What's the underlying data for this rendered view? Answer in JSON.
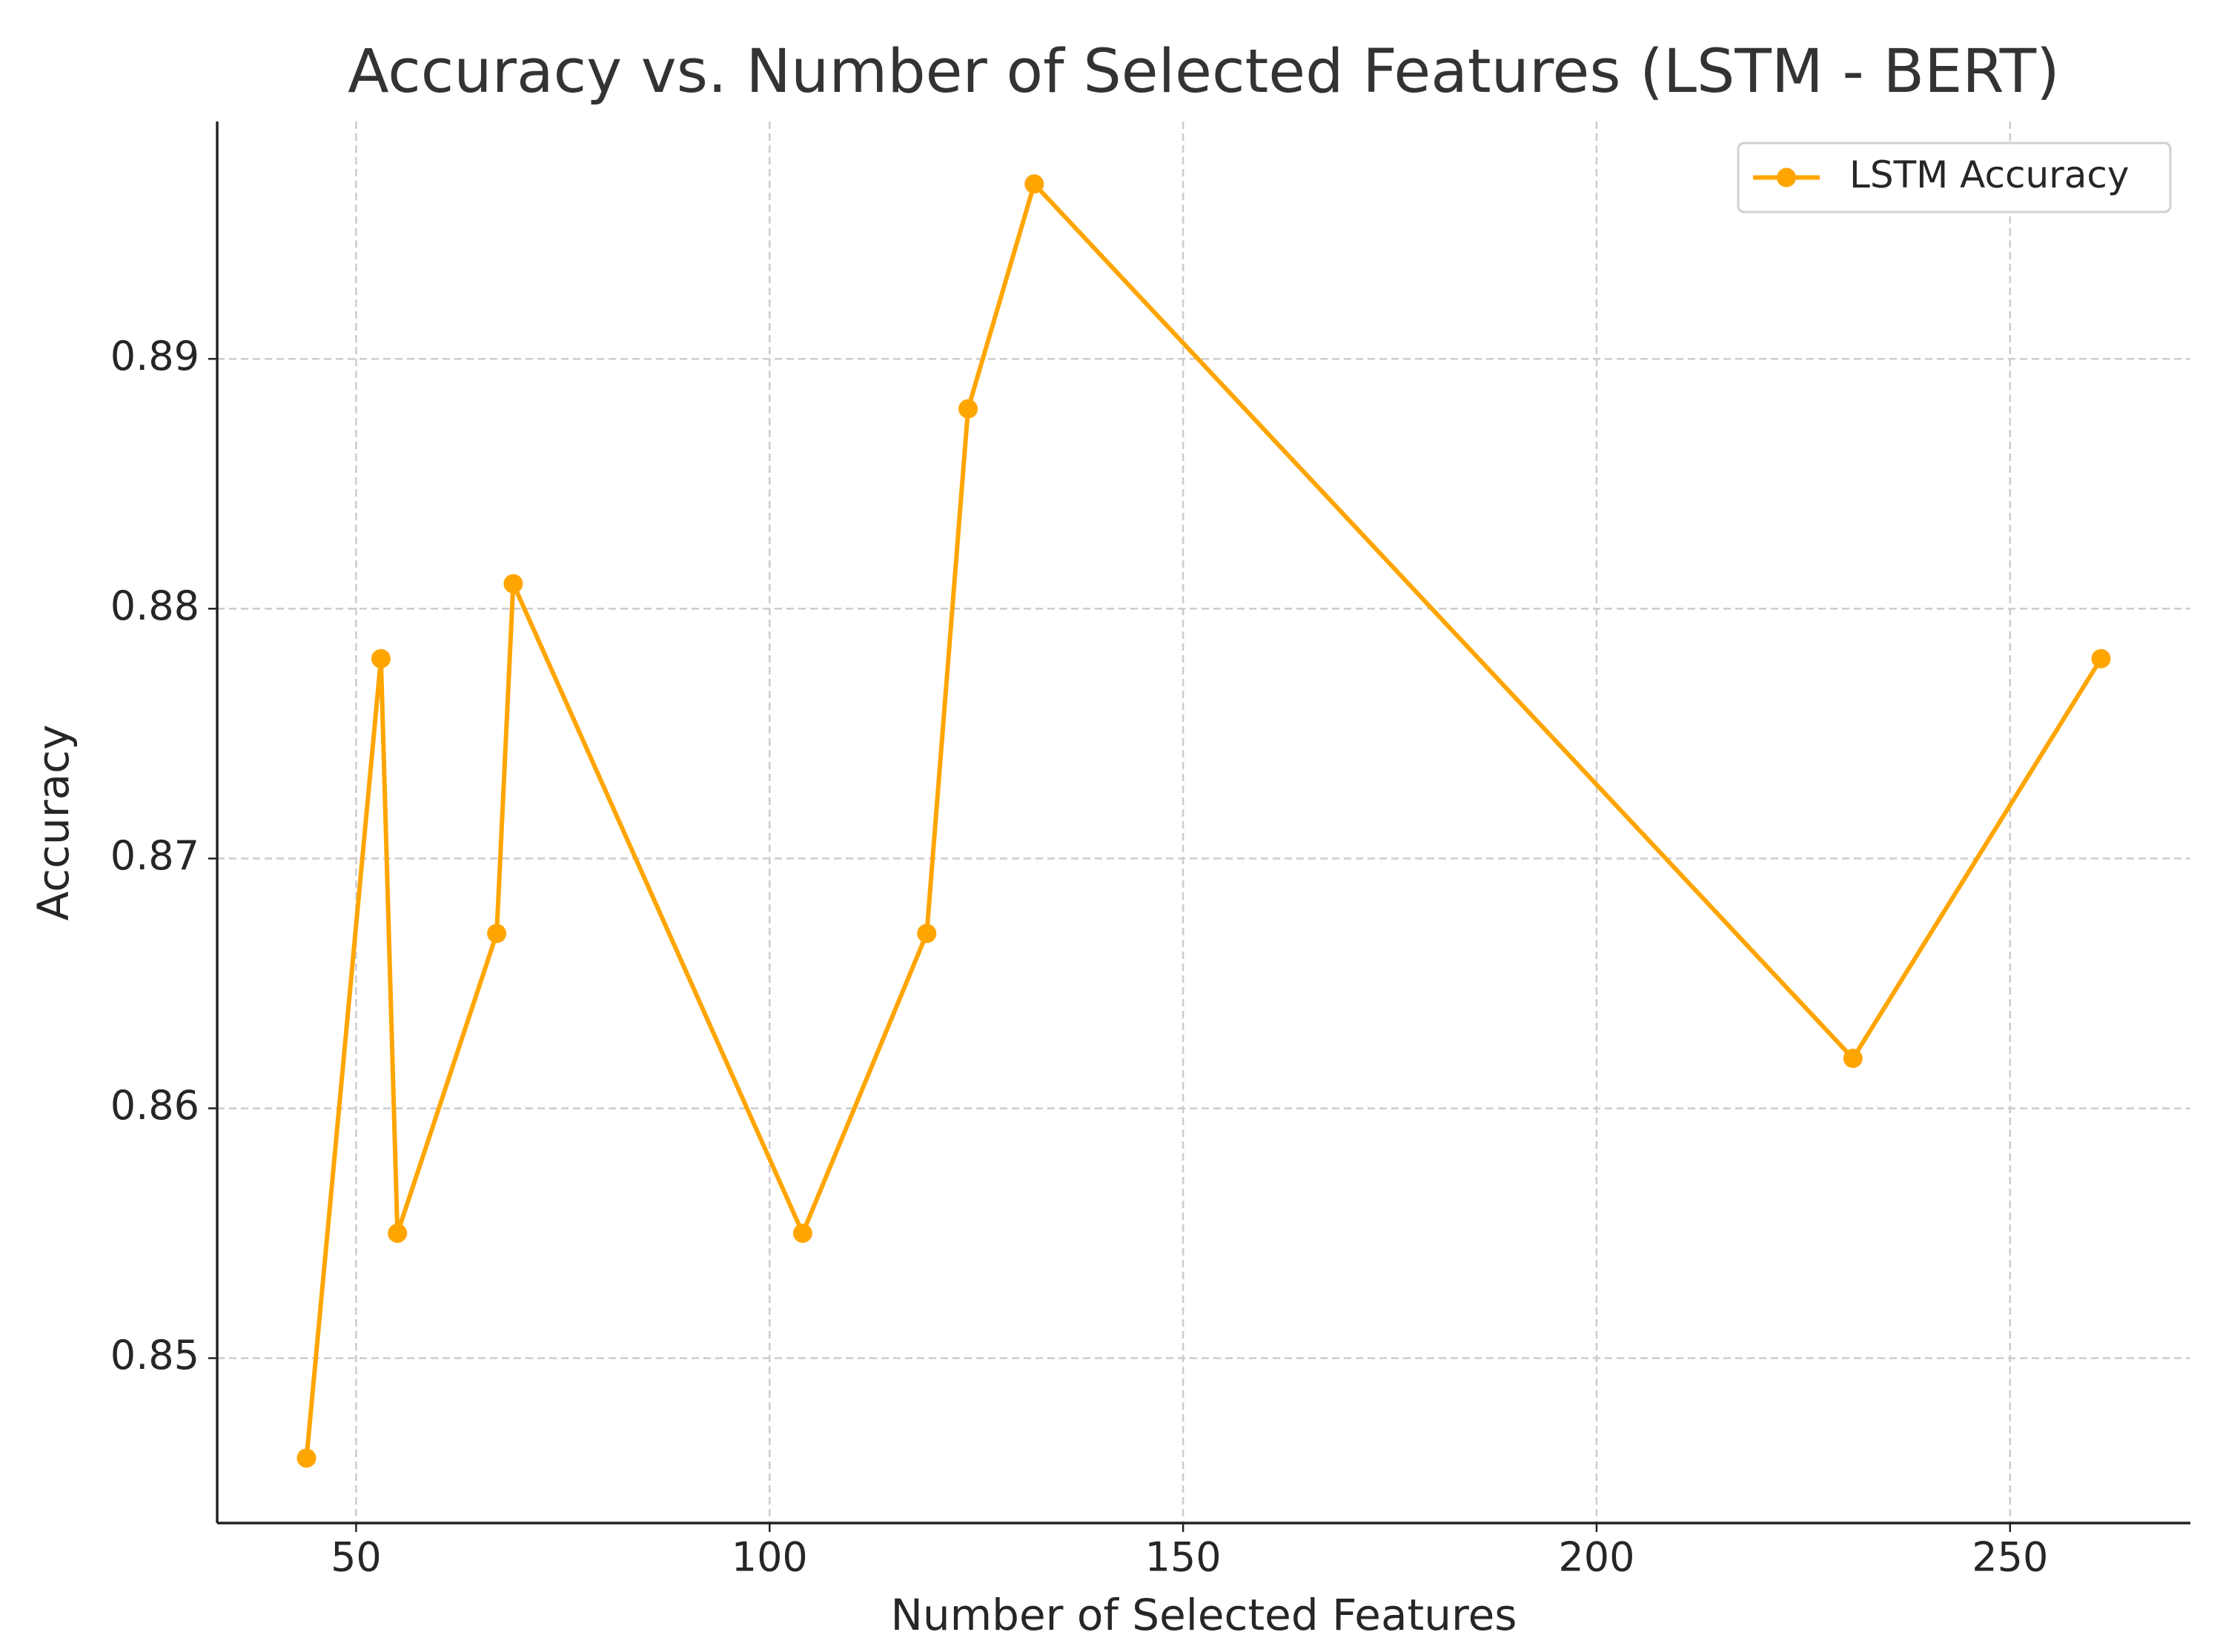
{
  "chart_data": {
    "type": "line",
    "title": "Accuracy vs. Number of Selected Features (LSTM - BERT)",
    "x_label": "Number of Selected Features",
    "y_label": "Accuracy",
    "x": [
      44,
      53,
      55,
      67,
      69,
      104,
      119,
      124,
      132,
      231,
      261
    ],
    "series": [
      {
        "name": "LSTM Accuracy",
        "color": "#ffa500",
        "values": [
          0.846,
          0.878,
          0.855,
          0.867,
          0.881,
          0.855,
          0.867,
          0.888,
          0.897,
          0.862,
          0.878
        ]
      }
    ],
    "xlim": [
      33.2,
      271.8
    ],
    "xticks": [
      50,
      100,
      150,
      200,
      250
    ],
    "ylim": [
      0.8434,
      0.8995
    ],
    "yticks": [
      0.85,
      0.86,
      0.87,
      0.88,
      0.89
    ],
    "grid": true,
    "legend": "upper right"
  }
}
